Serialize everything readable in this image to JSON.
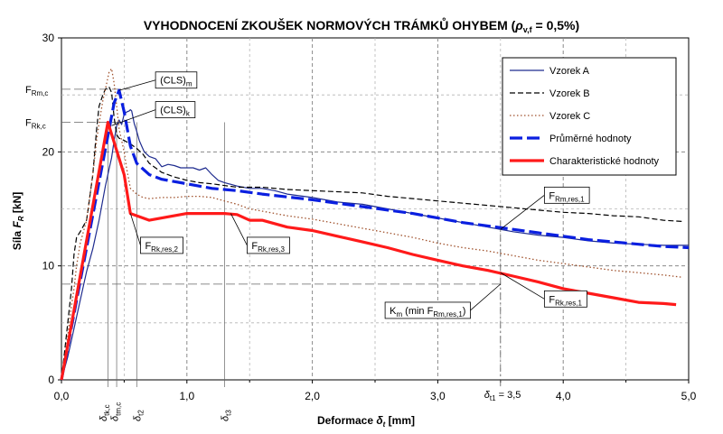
{
  "chart_data": {
    "type": "line",
    "title": "VYHODNOCENÍ ZKOUŠEK NORMOVÝCH TRÁMKŮ OHYBEM (ρv,f = 0,5%)",
    "title_parts": {
      "main": "VYHODNOCENÍ ZKOUŠEK NORMOVÝCH TRÁMKŮ OHYBEM (",
      "rho": "ρ",
      "rho_sub": "v,f",
      "tail": " = 0,5%)"
    },
    "xlabel": "Deformace δt [mm]",
    "xlabel_parts": {
      "main": "Deformace ",
      "sym": "δ",
      "sub": "t",
      "unit": " [mm]"
    },
    "ylabel": "Síla FR [kN]",
    "ylabel_parts": {
      "main": "Síla ",
      "sym": "F",
      "sub": "R",
      "unit": " [kN]"
    },
    "xlim": [
      0,
      5
    ],
    "ylim": [
      0,
      30
    ],
    "x_ticks": [
      {
        "v": 0,
        "label": "0,0"
      },
      {
        "v": 1,
        "label": "1,0"
      },
      {
        "v": 2,
        "label": "2,0"
      },
      {
        "v": 3,
        "label": "3,0"
      },
      {
        "v": 4,
        "label": "4,0"
      },
      {
        "v": 5,
        "label": "5,0"
      }
    ],
    "y_ticks": [
      {
        "v": 0,
        "label": "0"
      },
      {
        "v": 10,
        "label": "10"
      },
      {
        "v": 20,
        "label": "20"
      },
      {
        "v": 30,
        "label": "30"
      }
    ],
    "grid": true,
    "legend_position": "top-right",
    "series": [
      {
        "name": "Vzorek A",
        "color": "#1f2c8f",
        "style": "solid",
        "width": 1.2,
        "points": [
          [
            0,
            0
          ],
          [
            0.05,
            2
          ],
          [
            0.1,
            4.5
          ],
          [
            0.15,
            7
          ],
          [
            0.2,
            9.5
          ],
          [
            0.25,
            11.5
          ],
          [
            0.3,
            14
          ],
          [
            0.35,
            17
          ],
          [
            0.38,
            18.5
          ],
          [
            0.4,
            19.5
          ],
          [
            0.42,
            21
          ],
          [
            0.44,
            22.3
          ],
          [
            0.46,
            22.8
          ],
          [
            0.48,
            22.4
          ],
          [
            0.5,
            23.3
          ],
          [
            0.52,
            23.5
          ],
          [
            0.54,
            23.6
          ],
          [
            0.55,
            23.7
          ],
          [
            0.56,
            23.6
          ],
          [
            0.58,
            22.5
          ],
          [
            0.6,
            21.8
          ],
          [
            0.62,
            21
          ],
          [
            0.64,
            20.5
          ],
          [
            0.66,
            20
          ],
          [
            0.7,
            19.6
          ],
          [
            0.75,
            19.4
          ],
          [
            0.8,
            18.7
          ],
          [
            0.85,
            18.9
          ],
          [
            0.9,
            18.8
          ],
          [
            0.95,
            18.6
          ],
          [
            1.0,
            18.6
          ],
          [
            1.05,
            18.6
          ],
          [
            1.1,
            18.4
          ],
          [
            1.15,
            18.6
          ],
          [
            1.2,
            18.0
          ],
          [
            1.25,
            17.5
          ],
          [
            1.3,
            17.3
          ],
          [
            1.4,
            17.0
          ],
          [
            1.5,
            16.8
          ],
          [
            1.6,
            16.8
          ],
          [
            1.7,
            16.6
          ],
          [
            1.8,
            16.3
          ],
          [
            2.0,
            16.0
          ],
          [
            2.2,
            15.6
          ],
          [
            2.4,
            15.4
          ],
          [
            2.6,
            15.0
          ],
          [
            2.8,
            14.6
          ],
          [
            3.0,
            14.2
          ],
          [
            3.2,
            13.8
          ],
          [
            3.4,
            13.4
          ],
          [
            3.6,
            13.0
          ],
          [
            3.8,
            12.7
          ],
          [
            4.0,
            12.5
          ],
          [
            4.2,
            12.2
          ],
          [
            4.4,
            12.0
          ],
          [
            4.6,
            11.9
          ],
          [
            4.8,
            11.8
          ],
          [
            5.0,
            11.8
          ]
        ]
      },
      {
        "name": "Vzorek B",
        "color": "#000000",
        "style": "dashed",
        "width": 1.2,
        "points": [
          [
            0,
            0
          ],
          [
            0.04,
            4
          ],
          [
            0.08,
            8
          ],
          [
            0.1,
            11
          ],
          [
            0.12,
            12.5
          ],
          [
            0.15,
            13
          ],
          [
            0.2,
            14
          ],
          [
            0.25,
            18
          ],
          [
            0.28,
            22
          ],
          [
            0.3,
            24
          ],
          [
            0.33,
            25
          ],
          [
            0.35,
            25.5
          ],
          [
            0.38,
            25.7
          ],
          [
            0.4,
            25.2
          ],
          [
            0.42,
            23
          ],
          [
            0.44,
            21.5
          ],
          [
            0.46,
            21.2
          ],
          [
            0.5,
            21.0
          ],
          [
            0.55,
            20.7
          ],
          [
            0.6,
            20.3
          ],
          [
            0.65,
            19.8
          ],
          [
            0.7,
            19.0
          ],
          [
            0.8,
            18.2
          ],
          [
            0.9,
            17.8
          ],
          [
            1.0,
            17.5
          ],
          [
            1.1,
            17.3
          ],
          [
            1.2,
            17.2
          ],
          [
            1.4,
            16.9
          ],
          [
            1.6,
            16.9
          ],
          [
            1.8,
            16.7
          ],
          [
            2.0,
            16.6
          ],
          [
            2.2,
            16.5
          ],
          [
            2.4,
            16.4
          ],
          [
            2.6,
            16.1
          ],
          [
            2.8,
            15.9
          ],
          [
            3.0,
            15.7
          ],
          [
            3.2,
            15.5
          ],
          [
            3.4,
            15.3
          ],
          [
            3.6,
            15.1
          ],
          [
            3.8,
            14.9
          ],
          [
            4.0,
            14.7
          ],
          [
            4.2,
            14.6
          ],
          [
            4.4,
            14.4
          ],
          [
            4.6,
            14.3
          ],
          [
            4.8,
            14.0
          ],
          [
            4.95,
            13.9
          ]
        ]
      },
      {
        "name": "Vzorek C",
        "color": "#a0522d",
        "style": "dotted",
        "width": 1.3,
        "points": [
          [
            0,
            0
          ],
          [
            0.04,
            3
          ],
          [
            0.08,
            6.5
          ],
          [
            0.1,
            8
          ],
          [
            0.12,
            10
          ],
          [
            0.15,
            12
          ],
          [
            0.2,
            14
          ],
          [
            0.25,
            18
          ],
          [
            0.28,
            21
          ],
          [
            0.3,
            22.5
          ],
          [
            0.33,
            24.5
          ],
          [
            0.36,
            26
          ],
          [
            0.38,
            27
          ],
          [
            0.4,
            27.3
          ],
          [
            0.42,
            26
          ],
          [
            0.44,
            24
          ],
          [
            0.46,
            22
          ],
          [
            0.5,
            20
          ],
          [
            0.52,
            18.5
          ],
          [
            0.55,
            16.8
          ],
          [
            0.6,
            16.3
          ],
          [
            0.65,
            16.0
          ],
          [
            0.7,
            15.9
          ],
          [
            0.8,
            16.0
          ],
          [
            0.9,
            16.0
          ],
          [
            1.0,
            16.1
          ],
          [
            1.1,
            16.1
          ],
          [
            1.2,
            16.0
          ],
          [
            1.3,
            15.7
          ],
          [
            1.4,
            15.4
          ],
          [
            1.5,
            15.0
          ],
          [
            1.6,
            14.8
          ],
          [
            1.8,
            14.4
          ],
          [
            2.0,
            14.1
          ],
          [
            2.2,
            13.7
          ],
          [
            2.4,
            13.3
          ],
          [
            2.6,
            12.9
          ],
          [
            2.8,
            12.5
          ],
          [
            3.0,
            12.0
          ],
          [
            3.2,
            11.6
          ],
          [
            3.4,
            11.3
          ],
          [
            3.6,
            10.9
          ],
          [
            3.8,
            10.5
          ],
          [
            4.0,
            10.2
          ],
          [
            4.2,
            9.9
          ],
          [
            4.4,
            9.6
          ],
          [
            4.6,
            9.4
          ],
          [
            4.8,
            9.2
          ],
          [
            4.95,
            9.0
          ]
        ]
      },
      {
        "name": "Průměrné hodnoty",
        "color": "#0a1fe0",
        "style": "longdash",
        "width": 3.2,
        "points": [
          [
            0.0,
            0.0
          ],
          [
            0.42,
            24.3
          ],
          [
            0.46,
            25.4
          ],
          [
            0.5,
            23.5
          ],
          [
            0.55,
            20.5
          ],
          [
            0.6,
            19.0
          ],
          [
            0.7,
            18.0
          ],
          [
            0.8,
            17.6
          ],
          [
            1.0,
            17.2
          ],
          [
            1.2,
            16.8
          ],
          [
            1.4,
            16.6
          ],
          [
            1.6,
            16.3
          ],
          [
            2.0,
            15.8
          ],
          [
            2.4,
            15.2
          ],
          [
            2.8,
            14.6
          ],
          [
            3.0,
            14.2
          ],
          [
            3.2,
            13.8
          ],
          [
            3.4,
            13.5
          ],
          [
            3.6,
            13.2
          ],
          [
            3.8,
            12.9
          ],
          [
            4.0,
            12.6
          ],
          [
            4.2,
            12.3
          ],
          [
            4.4,
            12.1
          ],
          [
            4.6,
            11.9
          ],
          [
            4.8,
            11.7
          ],
          [
            5.0,
            11.6
          ]
        ]
      },
      {
        "name": "Charakteristické hodnoty",
        "color": "#ff1a1a",
        "style": "solid",
        "width": 3.2,
        "points": [
          [
            0.0,
            0.0
          ],
          [
            0.37,
            22.6
          ],
          [
            0.5,
            18.0
          ],
          [
            0.55,
            14.6
          ],
          [
            0.6,
            14.4
          ],
          [
            0.7,
            14.0
          ],
          [
            0.8,
            14.2
          ],
          [
            1.0,
            14.6
          ],
          [
            1.2,
            14.6
          ],
          [
            1.3,
            14.6
          ],
          [
            1.4,
            14.5
          ],
          [
            1.5,
            14.0
          ],
          [
            1.6,
            14.0
          ],
          [
            1.8,
            13.4
          ],
          [
            2.0,
            13.1
          ],
          [
            2.2,
            12.6
          ],
          [
            2.4,
            12.1
          ],
          [
            2.6,
            11.6
          ],
          [
            2.8,
            11.0
          ],
          [
            3.0,
            10.5
          ],
          [
            3.2,
            10.0
          ],
          [
            3.4,
            9.6
          ],
          [
            3.6,
            9.1
          ],
          [
            3.8,
            8.6
          ],
          [
            4.0,
            8.0
          ],
          [
            4.2,
            7.6
          ],
          [
            4.4,
            7.2
          ],
          [
            4.6,
            6.8
          ],
          [
            4.8,
            6.7
          ],
          [
            4.9,
            6.6
          ]
        ]
      }
    ],
    "reference_lines": [
      {
        "kind": "h",
        "y": 25.5,
        "style": "dashed"
      },
      {
        "kind": "h",
        "y": 22.6,
        "style": "dashed"
      },
      {
        "kind": "h",
        "y": 8.4,
        "style": "dashed"
      },
      {
        "kind": "v",
        "x": 0.37,
        "style": "thin"
      },
      {
        "kind": "v",
        "x": 0.44,
        "style": "thin"
      },
      {
        "kind": "v",
        "x": 0.6,
        "style": "thin"
      },
      {
        "kind": "v",
        "x": 1.3,
        "style": "thin"
      }
    ],
    "y_annotations": [
      {
        "y": 25.5,
        "main": "F",
        "sub": "Rm,c"
      },
      {
        "y": 22.6,
        "main": "F",
        "sub": "Rk,c"
      }
    ],
    "x_annotations": [
      {
        "x": 0.33,
        "main": "δ",
        "sub": "tk,c"
      },
      {
        "x": 0.42,
        "main": "δ",
        "sub": "tm,c"
      },
      {
        "x": 0.6,
        "main": "δ",
        "sub": "t2"
      },
      {
        "x": 1.3,
        "main": "δ",
        "sub": "t3"
      }
    ],
    "x_special": {
      "x": 3.5,
      "main": "δ",
      "sub": "t1",
      "tail": " = 3,5"
    },
    "callouts": [
      {
        "main": "(CLS)",
        "sub": "m",
        "box_at": [
          0.75,
          26.3
        ],
        "point": [
          0.46,
          25.4
        ]
      },
      {
        "main": "(CLS)",
        "sub": "k",
        "box_at": [
          0.75,
          23.7
        ],
        "point": [
          0.4,
          22.3
        ]
      },
      {
        "main": "F",
        "sub": "Rk,res,2",
        "box_at": [
          0.63,
          11.8
        ],
        "point": [
          0.55,
          14.6
        ]
      },
      {
        "main": "F",
        "sub": "Rk,res,3",
        "box_at": [
          1.48,
          11.8
        ],
        "point": [
          1.35,
          14.6
        ]
      },
      {
        "main": "F",
        "sub": "Rm,res,1",
        "box_at": [
          3.85,
          16.2
        ],
        "point": [
          3.5,
          13.2
        ]
      },
      {
        "main": "F",
        "sub": "Rk,res,1",
        "box_at": [
          3.85,
          7.1
        ],
        "point": [
          3.5,
          9.4
        ]
      },
      {
        "main": "K",
        "sub": "m",
        "extra": " (min F",
        "extra_sub": "Rm,res,1",
        "close": ")",
        "box_at": [
          2.58,
          6.1
        ],
        "point": [
          3.5,
          8.4
        ]
      }
    ]
  }
}
